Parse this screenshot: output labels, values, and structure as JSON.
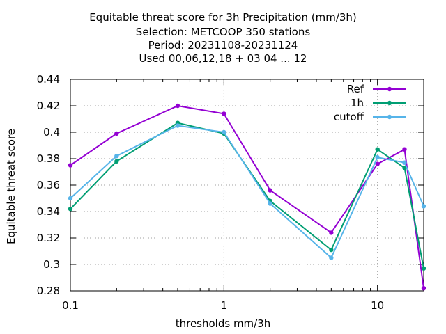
{
  "chart_data": {
    "type": "line",
    "title_lines": [
      "Equitable threat score  for 3h Precipitation (mm/3h)",
      "Selection: METCOOP    350 stations",
      "Period: 20231108-20231124",
      "Used  00,06,12,18 + 03 04 ... 12"
    ],
    "xlabel": "thresholds mm/3h",
    "ylabel": "Equitable threat score",
    "x_scale": "log",
    "xlim": [
      0.1,
      20
    ],
    "ylim": [
      0.28,
      0.44
    ],
    "x_ticks": [
      0.1,
      1,
      10
    ],
    "x_tick_labels": [
      "0.1",
      "1",
      "10"
    ],
    "y_ticks": [
      0.28,
      0.3,
      0.32,
      0.34,
      0.36,
      0.38,
      0.4,
      0.42,
      0.44
    ],
    "y_tick_labels": [
      "0.28",
      "0.3",
      "0.32",
      "0.34",
      "0.36",
      "0.38",
      "0.4",
      "0.42",
      "0.44"
    ],
    "grid": true,
    "legend_position": "top-right",
    "x": [
      0.1,
      0.2,
      0.5,
      1,
      2,
      5,
      10,
      15,
      20
    ],
    "series": [
      {
        "name": "Ref",
        "color": "#9400d3",
        "values": [
          0.375,
          0.399,
          0.42,
          0.414,
          0.356,
          0.324,
          0.376,
          0.387,
          0.282
        ]
      },
      {
        "name": "1h",
        "color": "#009e73",
        "values": [
          0.342,
          0.378,
          0.407,
          0.399,
          0.348,
          0.311,
          0.387,
          0.373,
          0.297
        ]
      },
      {
        "name": "cutoff",
        "color": "#56b4e9",
        "values": [
          0.35,
          0.382,
          0.405,
          0.4,
          0.346,
          0.305,
          0.381,
          0.377,
          0.344
        ]
      }
    ]
  }
}
